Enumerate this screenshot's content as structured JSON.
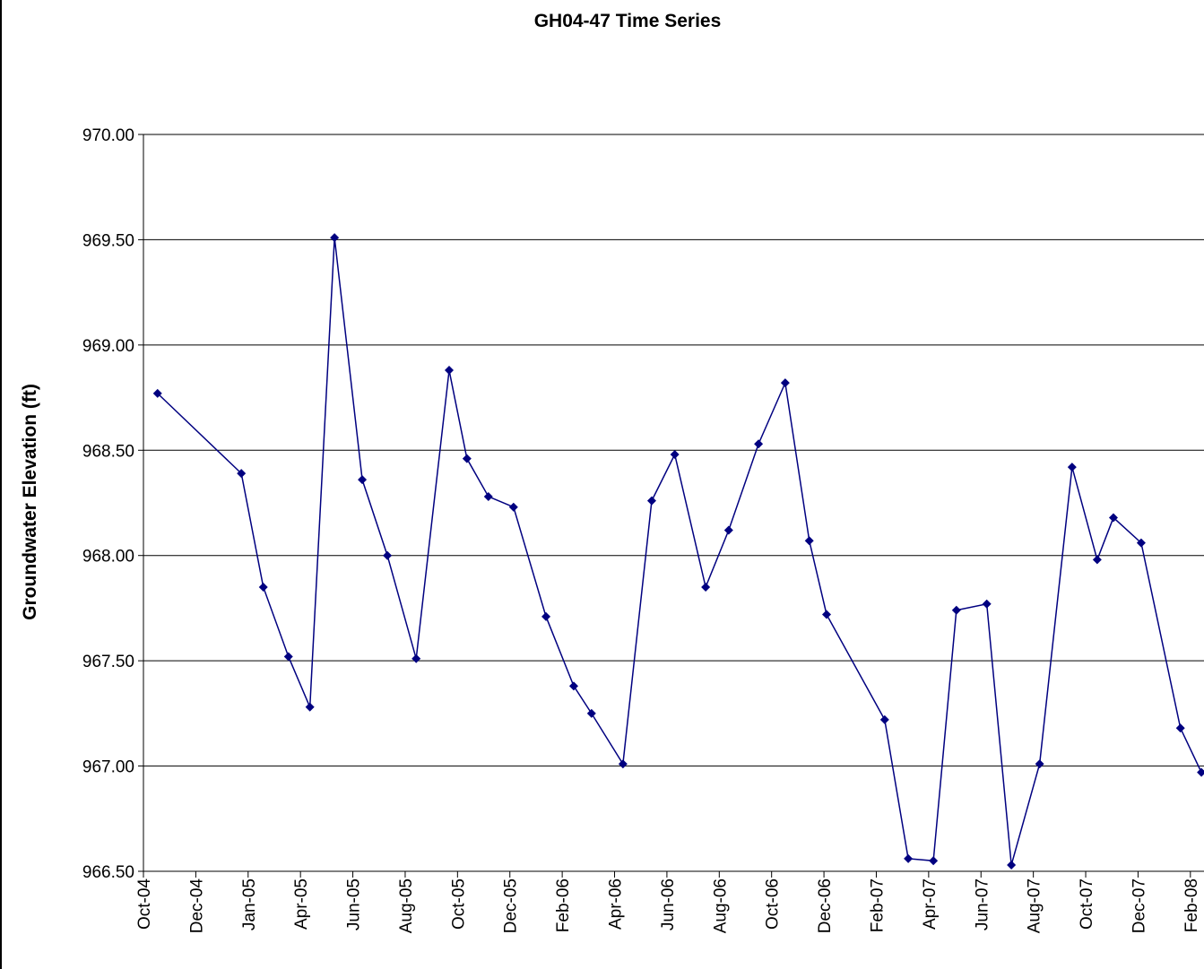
{
  "chart_data": {
    "type": "line",
    "title": "GH04-47 Time Series",
    "y_label": "Groundwater Elevation (ft)",
    "x": [
      0.27,
      1.87,
      2.29,
      2.77,
      3.18,
      3.65,
      4.18,
      4.66,
      5.21,
      5.84,
      6.18,
      6.59,
      7.07,
      7.69,
      8.22,
      8.56,
      9.16,
      9.71,
      10.15,
      10.74,
      11.18,
      11.75,
      12.26,
      12.72,
      13.05,
      14.16,
      14.61,
      15.09,
      15.53,
      16.11,
      16.58,
      17.12,
      17.74,
      18.22,
      18.53,
      19.06,
      19.81,
      20.21
    ],
    "series": [
      {
        "name": "GH04-47",
        "color": "#000080",
        "values": [
          968.77,
          968.39,
          967.85,
          967.52,
          967.28,
          969.51,
          968.36,
          968.0,
          967.51,
          968.88,
          968.46,
          968.28,
          968.23,
          967.71,
          967.38,
          967.25,
          967.01,
          968.26,
          968.48,
          967.85,
          968.12,
          968.53,
          968.82,
          968.07,
          967.72,
          967.22,
          966.56,
          966.55,
          967.74,
          967.77,
          966.53,
          967.01,
          968.42,
          967.98,
          968.18,
          968.06,
          967.18,
          966.97
        ]
      }
    ],
    "xlim": [
      0,
      20.26
    ],
    "xticks": [
      {
        "value": 0,
        "label": "Oct-04"
      },
      {
        "value": 1,
        "label": "Dec-04"
      },
      {
        "value": 2,
        "label": "Jan-05"
      },
      {
        "value": 3,
        "label": "Apr-05"
      },
      {
        "value": 4,
        "label": "Jun-05"
      },
      {
        "value": 5,
        "label": "Aug-05"
      },
      {
        "value": 6,
        "label": "Oct-05"
      },
      {
        "value": 7,
        "label": "Dec-05"
      },
      {
        "value": 8,
        "label": "Feb-06"
      },
      {
        "value": 9,
        "label": "Apr-06"
      },
      {
        "value": 10,
        "label": "Jun-06"
      },
      {
        "value": 11,
        "label": "Aug-06"
      },
      {
        "value": 12,
        "label": "Oct-06"
      },
      {
        "value": 13,
        "label": "Dec-06"
      },
      {
        "value": 14,
        "label": "Feb-07"
      },
      {
        "value": 15,
        "label": "Apr-07"
      },
      {
        "value": 16,
        "label": "Jun-07"
      },
      {
        "value": 17,
        "label": "Aug-07"
      },
      {
        "value": 18,
        "label": "Oct-07"
      },
      {
        "value": 19,
        "label": "Dec-07"
      },
      {
        "value": 20,
        "label": "Feb-08"
      }
    ],
    "ylim": [
      966.5,
      970
    ],
    "yticks": [
      {
        "value": 966.5,
        "label": "966.50"
      },
      {
        "value": 967,
        "label": "967.00"
      },
      {
        "value": 967.5,
        "label": "967.50"
      },
      {
        "value": 968,
        "label": "968.00"
      },
      {
        "value": 968.5,
        "label": "968.50"
      },
      {
        "value": 969,
        "label": "969.00"
      },
      {
        "value": 969.5,
        "label": "969.50"
      },
      {
        "value": 970,
        "label": "970.00"
      }
    ],
    "grid": true,
    "marker": "diamond"
  }
}
